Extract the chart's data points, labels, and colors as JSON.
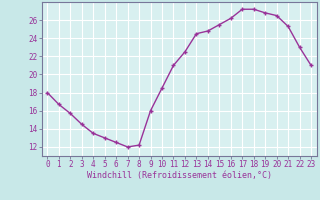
{
  "x": [
    0,
    1,
    2,
    3,
    4,
    5,
    6,
    7,
    8,
    9,
    10,
    11,
    12,
    13,
    14,
    15,
    16,
    17,
    18,
    19,
    20,
    21,
    22,
    23
  ],
  "y": [
    18,
    16.7,
    15.7,
    14.5,
    13.5,
    13.0,
    12.5,
    12.0,
    12.2,
    16.0,
    18.5,
    21.0,
    22.5,
    24.5,
    24.8,
    25.5,
    26.2,
    27.2,
    27.2,
    26.8,
    26.5,
    25.3,
    23.0,
    21.0
  ],
  "line_color": "#993399",
  "marker": "+",
  "marker_size": 3.5,
  "marker_lw": 1.0,
  "bg_color": "#c8e8e8",
  "plot_bg_color": "#d8f0f0",
  "grid_color": "#ffffff",
  "xlabel": "Windchill (Refroidissement éolien,°C)",
  "xlabel_color": "#993399",
  "tick_color": "#993399",
  "ylim": [
    11.0,
    28.0
  ],
  "yticks": [
    12,
    14,
    16,
    18,
    20,
    22,
    24,
    26
  ],
  "xlim": [
    -0.5,
    23.5
  ],
  "axis_color": "#777799",
  "tick_fontsize": 5.5,
  "xlabel_fontsize": 6.0,
  "linewidth": 1.0
}
